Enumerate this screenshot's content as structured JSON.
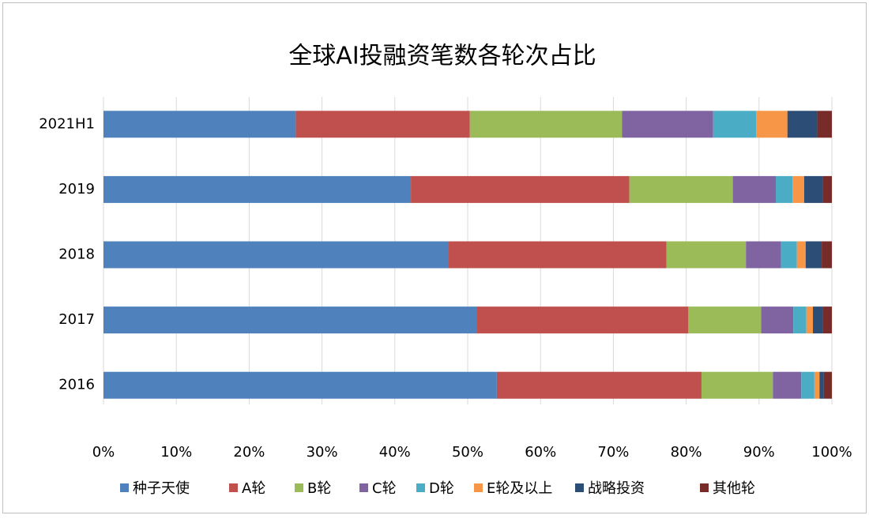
{
  "chart_data": {
    "type": "bar",
    "orientation": "horizontal",
    "stacked": true,
    "title": "全球AI投融资笔数各轮次占比",
    "categories": [
      "2021H1",
      "2019",
      "2018",
      "2017",
      "2016"
    ],
    "series": [
      {
        "name": "种子天使",
        "color": "#4f81bd",
        "values": [
          26.4,
          42.2,
          47.4,
          51.2,
          54.0
        ]
      },
      {
        "name": "A轮",
        "color": "#c0504d",
        "values": [
          23.9,
          30.0,
          29.9,
          29.1,
          28.1
        ]
      },
      {
        "name": "B轮",
        "color": "#9bbb59",
        "values": [
          20.9,
          14.2,
          10.9,
          10.0,
          9.8
        ]
      },
      {
        "name": "C轮",
        "color": "#8064a2",
        "values": [
          12.5,
          5.9,
          4.8,
          4.4,
          3.9
        ]
      },
      {
        "name": "D轮",
        "color": "#4bacc6",
        "values": [
          5.9,
          2.3,
          2.2,
          1.8,
          1.8
        ]
      },
      {
        "name": "E轮及以上",
        "color": "#f79646",
        "values": [
          4.3,
          1.6,
          1.2,
          0.9,
          0.7
        ]
      },
      {
        "name": "战略投资",
        "color": "#2c4d75",
        "values": [
          4.1,
          2.6,
          2.2,
          1.4,
          0.6
        ]
      },
      {
        "name": "其他轮",
        "color": "#772c2a",
        "values": [
          2.0,
          1.2,
          1.4,
          1.2,
          1.1
        ]
      }
    ],
    "xlim": [
      0,
      100
    ],
    "xticks": [
      {
        "value": 0,
        "label": "0%"
      },
      {
        "value": 10,
        "label": "10%"
      },
      {
        "value": 20,
        "label": "20%"
      },
      {
        "value": 30,
        "label": "30%"
      },
      {
        "value": 40,
        "label": "40%"
      },
      {
        "value": 50,
        "label": "50%"
      },
      {
        "value": 60,
        "label": "60%"
      },
      {
        "value": 70,
        "label": "70%"
      },
      {
        "value": 80,
        "label": "80%"
      },
      {
        "value": 90,
        "label": "90%"
      },
      {
        "value": 100,
        "label": "100%"
      }
    ],
    "grid": true,
    "legend": "bottom"
  }
}
